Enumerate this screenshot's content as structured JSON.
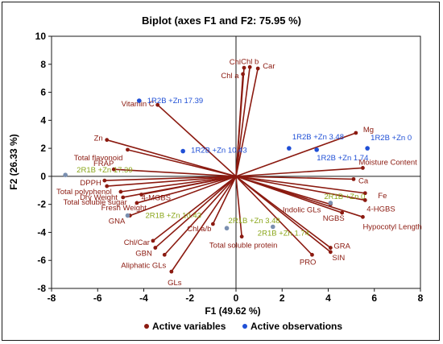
{
  "chart_data": {
    "type": "scatter",
    "title": "Biplot (axes F1 and F2: 75.95 %)",
    "xlabel": "F1 (49.62 %)",
    "ylabel": "F2 (26.33 %)",
    "xlim": [
      -8,
      8
    ],
    "ylim": [
      -8,
      10
    ],
    "xticks": [
      -8,
      -6,
      -4,
      -2,
      0,
      2,
      4,
      6,
      8
    ],
    "yticks": [
      -8,
      -6,
      -4,
      -2,
      0,
      2,
      4,
      6,
      8,
      10
    ],
    "grid": false,
    "legend_position": "bottom",
    "colors": {
      "variables": "#8b1a10",
      "observations": "#1f4fd6",
      "observations_2r1b": "#8aa61a",
      "observations_faded": "#7a8fb0"
    },
    "series": [
      {
        "name": "Active variables",
        "type": "vectors",
        "points": [
          {
            "label": "Chl b",
            "x": 0.6,
            "y": 7.8
          },
          {
            "label": "Chl",
            "x": 0.35,
            "y": 7.75
          },
          {
            "label": "Car",
            "x": 0.95,
            "y": 7.7
          },
          {
            "label": "Chl a",
            "x": 0.3,
            "y": 7.3
          },
          {
            "label": "Vitamin C",
            "x": -3.4,
            "y": 5.1
          },
          {
            "label": "Zn",
            "x": -5.6,
            "y": 2.6
          },
          {
            "label": "Total flavonoid",
            "x": -4.7,
            "y": 1.9
          },
          {
            "label": "FRAP",
            "x": -5.3,
            "y": 0.5
          },
          {
            "label": "DPPH",
            "x": -5.7,
            "y": -0.3
          },
          {
            "label": "Total polyphenol",
            "x": -5.6,
            "y": -0.7
          },
          {
            "label": "Dry Weight",
            "x": -5.0,
            "y": -1.1
          },
          {
            "label": "Total soluble sugar",
            "x": -4.9,
            "y": -1.5
          },
          {
            "label": "4-MGBS",
            "x": -4.1,
            "y": -1.3
          },
          {
            "label": "Fresh Weight",
            "x": -4.3,
            "y": -1.9
          },
          {
            "label": "GNA",
            "x": -4.6,
            "y": -2.8
          },
          {
            "label": "Chl/Car",
            "x": -3.6,
            "y": -4.6
          },
          {
            "label": "GBN",
            "x": -3.5,
            "y": -5.1
          },
          {
            "label": "Aliphatic GLs",
            "x": -3.1,
            "y": -5.6
          },
          {
            "label": "GLs",
            "x": -2.8,
            "y": -6.8
          },
          {
            "label": "Chl a/b",
            "x": -1.0,
            "y": -3.4
          },
          {
            "label": "Total soluble protein",
            "x": 0.25,
            "y": -4.3
          },
          {
            "label": "Mg",
            "x": 5.2,
            "y": 3.1
          },
          {
            "label": "Moisture Content",
            "x": 5.5,
            "y": 0.6
          },
          {
            "label": "Ca",
            "x": 5.1,
            "y": -0.2
          },
          {
            "label": "Fe",
            "x": 5.6,
            "y": -1.2
          },
          {
            "label": "4-HGBS",
            "x": 5.6,
            "y": -1.7
          },
          {
            "label": "Indolic GLs",
            "x": 4.1,
            "y": -2.0
          },
          {
            "label": "NGBS",
            "x": 4.6,
            "y": -2.6
          },
          {
            "label": "Hypocotyl Length",
            "x": 5.5,
            "y": -2.9
          },
          {
            "label": "GRA",
            "x": 4.1,
            "y": -5.1
          },
          {
            "label": "SIN",
            "x": 4.1,
            "y": -5.4
          },
          {
            "label": "PRO",
            "x": 3.3,
            "y": -5.6
          }
        ]
      },
      {
        "name": "Active observations",
        "type": "points",
        "points": [
          {
            "label": "1R2B +Zn 17.39",
            "x": -4.2,
            "y": 5.4,
            "group": "observations"
          },
          {
            "label": "1R2B +Zn 10.43",
            "x": -2.3,
            "y": 1.8,
            "group": "observations"
          },
          {
            "label": "1R2B +Zn 3.48",
            "x": 2.3,
            "y": 2.0,
            "group": "observations"
          },
          {
            "label": "1R2B +Zn 1.74",
            "x": 3.5,
            "y": 1.9,
            "group": "observations"
          },
          {
            "label": "1R2B +Zn 0",
            "x": 5.7,
            "y": 2.0,
            "group": "observations"
          },
          {
            "label": "2R1B +Zn 17.39",
            "x": -7.4,
            "y": 0.1,
            "group": "observations_2r1b"
          },
          {
            "label": "2R1B +Zn 10.43",
            "x": -4.7,
            "y": -2.8,
            "group": "observations_2r1b"
          },
          {
            "label": "2R1B +Zn 3.48",
            "x": -0.4,
            "y": -3.7,
            "group": "observations_2r1b"
          },
          {
            "label": "2R1B +Zn 1.74",
            "x": 1.6,
            "y": -3.6,
            "group": "observations_2r1b"
          },
          {
            "label": "2R1B +Zn 0",
            "x": 4.1,
            "y": -1.9,
            "group": "observations_2r1b"
          }
        ]
      }
    ]
  }
}
